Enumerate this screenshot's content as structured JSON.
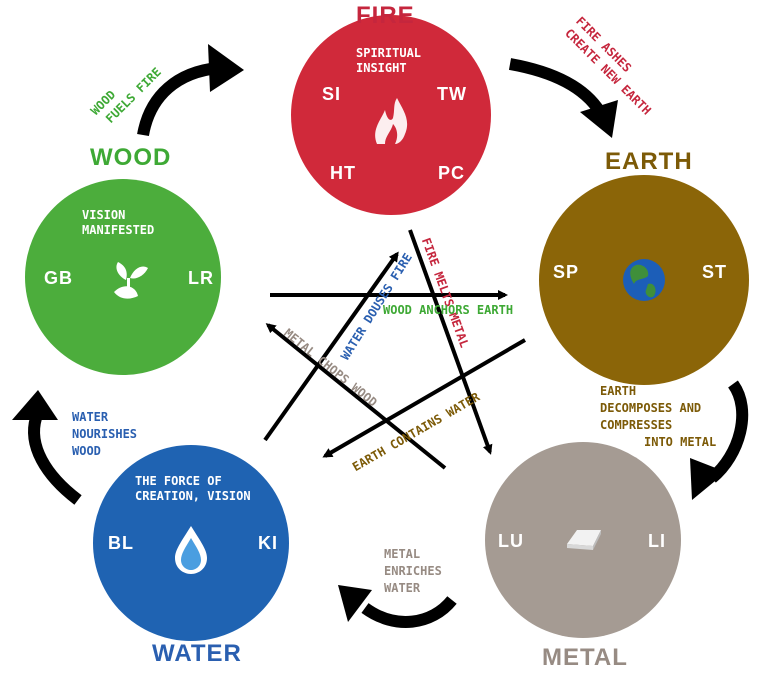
{
  "colors": {
    "fire": "#d0293a",
    "earth": "#8b6508",
    "metal": "#a59b93",
    "water": "#1f63b2",
    "wood": "#4cad3c",
    "fire_text": "#c5263d",
    "earth_text": "#7c5a07",
    "metal_text": "#978b83",
    "water_text": "#2a5fb0",
    "wood_text": "#3ea935"
  },
  "elements": {
    "fire": {
      "title": "FIRE",
      "inner_text": [
        "SPIRITUAL",
        "INSIGHT"
      ],
      "organs": [
        "SI",
        "TW",
        "HT",
        "PC"
      ],
      "icon": "flame-icon"
    },
    "earth": {
      "title": "EARTH",
      "organs": [
        "SP",
        "ST"
      ],
      "icon": "globe-icon"
    },
    "metal": {
      "title": "METAL",
      "organs": [
        "LU",
        "LI"
      ],
      "icon": "metal-bar-icon"
    },
    "water": {
      "title": "WATER",
      "inner_text": [
        "THE FORCE OF",
        "CREATION, VISION"
      ],
      "organs": [
        "BL",
        "KI"
      ],
      "icon": "water-drop-icon"
    },
    "wood": {
      "title": "WOOD",
      "inner_text": [
        "VISION",
        "MANIFESTED"
      ],
      "organs": [
        "GB",
        "LR"
      ],
      "icon": "sprout-icon"
    }
  },
  "generating_cycle": {
    "wood_fire": [
      "WOOD",
      "FUELS FIRE"
    ],
    "fire_earth": [
      "FIRE ASHES",
      "CREATE NEW EARTH"
    ],
    "earth_metal": [
      "EARTH",
      "DECOMPOSES AND",
      "COMPRESSES",
      "INTO METAL"
    ],
    "metal_water": [
      "METAL",
      "ENRICHES",
      "WATER"
    ],
    "water_wood": [
      "WATER",
      "NOURISHES",
      "WOOD"
    ]
  },
  "controlling_cycle": {
    "water_fire": "WATER DOUSES FIRE",
    "fire_metal": "FIRE MELTS METAL",
    "wood_earth": "WOOD ANCHORS EARTH",
    "earth_water": "EARTH CONTAINS WATER",
    "metal_wood": "METAL CHOPS WOOD"
  }
}
